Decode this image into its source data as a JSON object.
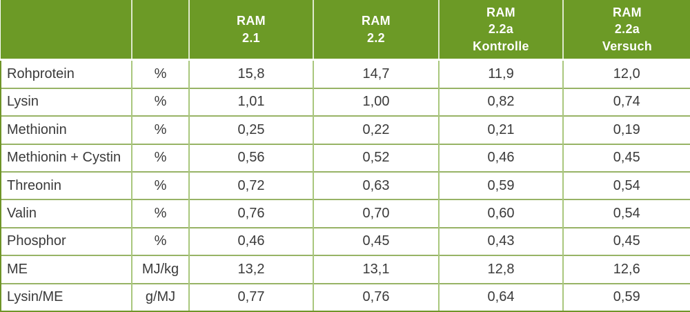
{
  "colors": {
    "header_bg": "#6c9a26",
    "header_text": "#ffffff",
    "header_separator": "#dfe9cd",
    "grid_horizontal": "#97b365",
    "grid_vertical": "#a9c77d",
    "outer_border_dark": "#6f9428",
    "outer_border_light": "#b5cf8e",
    "body_text": "#3a3a3a"
  },
  "table": {
    "columns": [
      {
        "title": "RAM\n2.1"
      },
      {
        "title": "RAM\n2.2"
      },
      {
        "title": "RAM\n2.2a\nKontrolle"
      },
      {
        "title": "RAM\n2.2a\nVersuch"
      }
    ],
    "rows": [
      {
        "label": "Rohprotein",
        "unit": "%",
        "values": [
          "15,8",
          "14,7",
          "11,9",
          "12,0"
        ]
      },
      {
        "label": "Lysin",
        "unit": "%",
        "values": [
          "1,01",
          "1,00",
          "0,82",
          "0,74"
        ]
      },
      {
        "label": "Methionin",
        "unit": "%",
        "values": [
          "0,25",
          "0,22",
          "0,21",
          "0,19"
        ]
      },
      {
        "label": "Methionin + Cystin",
        "unit": "%",
        "values": [
          "0,56",
          "0,52",
          "0,46",
          "0,45"
        ]
      },
      {
        "label": "Threonin",
        "unit": "%",
        "values": [
          "0,72",
          "0,63",
          "0,59",
          "0,54"
        ]
      },
      {
        "label": "Valin",
        "unit": "%",
        "values": [
          "0,76",
          "0,70",
          "0,60",
          "0,54"
        ]
      },
      {
        "label": "Phosphor",
        "unit": "%",
        "values": [
          "0,46",
          "0,45",
          "0,43",
          "0,45"
        ]
      },
      {
        "label": "ME",
        "unit": "MJ/kg",
        "values": [
          "13,2",
          "13,1",
          "12,8",
          "12,6"
        ]
      },
      {
        "label": "Lysin/ME",
        "unit": "g/MJ",
        "values": [
          "0,77",
          "0,76",
          "0,64",
          "0,59"
        ]
      }
    ]
  },
  "chart_data": {
    "type": "table",
    "decimal_separator": ",",
    "columns": [
      "",
      "",
      "RAM 2.1",
      "RAM 2.2",
      "RAM 2.2a Kontrolle",
      "RAM 2.2a Versuch"
    ],
    "rows": [
      {
        "label": "Rohprotein",
        "unit": "%",
        "values": [
          15.8,
          14.7,
          11.9,
          12.0
        ]
      },
      {
        "label": "Lysin",
        "unit": "%",
        "values": [
          1.01,
          1.0,
          0.82,
          0.74
        ]
      },
      {
        "label": "Methionin",
        "unit": "%",
        "values": [
          0.25,
          0.22,
          0.21,
          0.19
        ]
      },
      {
        "label": "Methionin + Cystin",
        "unit": "%",
        "values": [
          0.56,
          0.52,
          0.46,
          0.45
        ]
      },
      {
        "label": "Threonin",
        "unit": "%",
        "values": [
          0.72,
          0.63,
          0.59,
          0.54
        ]
      },
      {
        "label": "Valin",
        "unit": "%",
        "values": [
          0.76,
          0.7,
          0.6,
          0.54
        ]
      },
      {
        "label": "Phosphor",
        "unit": "%",
        "values": [
          0.46,
          0.45,
          0.43,
          0.45
        ]
      },
      {
        "label": "ME",
        "unit": "MJ/kg",
        "values": [
          13.2,
          13.1,
          12.8,
          12.6
        ]
      },
      {
        "label": "Lysin/ME",
        "unit": "g/MJ",
        "values": [
          0.77,
          0.76,
          0.64,
          0.59
        ]
      }
    ]
  }
}
